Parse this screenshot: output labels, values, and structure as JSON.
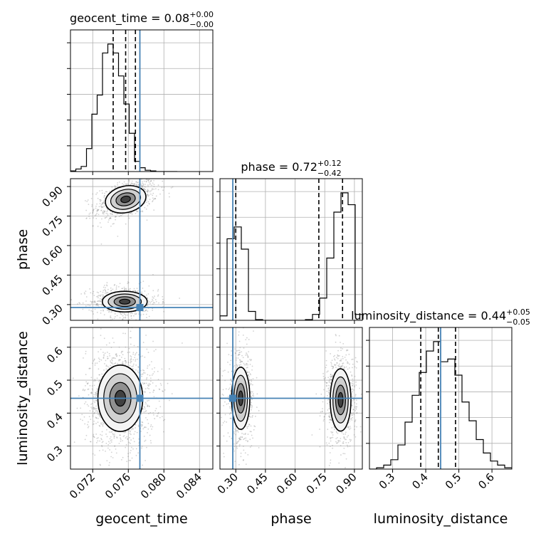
{
  "chart_data": {
    "type": "corner",
    "parameters": [
      {
        "name": "geocent_time",
        "range": [
          0.0695,
          0.0855
        ],
        "ticks": [
          0.072,
          0.076,
          0.08,
          0.084
        ],
        "tick_labels": [
          "0.072",
          "0.076",
          "0.080",
          "0.084"
        ],
        "truth": 0.0773,
        "quantiles": [
          0.0743,
          0.0757,
          0.0768
        ],
        "title_main": "geocent_time = 0.08",
        "title_plus": "+0.00",
        "title_minus": "−0.00",
        "hist_bins": [
          0.0695,
          0.0701,
          0.0707,
          0.0713,
          0.0719,
          0.0725,
          0.0731,
          0.0737,
          0.0743,
          0.0749,
          0.0755,
          0.0761,
          0.0767,
          0.0773,
          0.0779,
          0.0785,
          0.0791,
          0.0797,
          0.0803,
          0.0809,
          0.0815
        ],
        "hist_values": [
          0.005,
          0.02,
          0.04,
          0.18,
          0.45,
          0.6,
          0.93,
          1.0,
          0.93,
          0.75,
          0.53,
          0.3,
          0.08,
          0.03,
          0.01,
          0.005,
          0,
          0,
          0,
          0
        ]
      },
      {
        "name": "phase",
        "range": [
          0.22,
          0.94
        ],
        "ticks": [
          0.3,
          0.45,
          0.6,
          0.75,
          0.9
        ],
        "tick_labels": [
          "0.30",
          "0.45",
          "0.60",
          "0.75",
          "0.90"
        ],
        "truth": 0.285,
        "quantiles": [
          0.3,
          0.72,
          0.84
        ],
        "title_main": "phase = 0.72",
        "title_plus": "+0.12",
        "title_minus": "−0.42",
        "hist_bins": [
          0.22,
          0.256,
          0.292,
          0.328,
          0.364,
          0.4,
          0.436,
          0.472,
          0.508,
          0.544,
          0.58,
          0.616,
          0.652,
          0.688,
          0.724,
          0.76,
          0.796,
          0.832,
          0.868,
          0.904,
          0.94
        ],
        "hist_values": [
          0.03,
          0.55,
          0.63,
          0.48,
          0.06,
          0.005,
          0,
          0,
          0,
          0,
          0,
          0,
          0.005,
          0.04,
          0.15,
          0.42,
          0.73,
          0.86,
          0.78,
          0.04
        ]
      },
      {
        "name": "luminosity_distance",
        "range": [
          0.23,
          0.66
        ],
        "ticks": [
          0.3,
          0.4,
          0.5,
          0.6
        ],
        "tick_labels": [
          "0.3",
          "0.4",
          "0.5",
          "0.6"
        ],
        "truth": 0.445,
        "quantiles": [
          0.385,
          0.438,
          0.49
        ],
        "title_main": "luminosity_distance = 0.44",
        "title_plus": "+0.05",
        "title_minus": "−0.05",
        "hist_bins": [
          0.23,
          0.2515,
          0.273,
          0.2945,
          0.316,
          0.3375,
          0.359,
          0.3805,
          0.402,
          0.4235,
          0.445,
          0.4665,
          0.488,
          0.5095,
          0.531,
          0.5525,
          0.574,
          0.5955,
          0.617,
          0.6385,
          0.66
        ],
        "hist_values": [
          0,
          0.01,
          0.03,
          0.07,
          0.18,
          0.35,
          0.55,
          0.72,
          0.88,
          0.95,
          0.8,
          0.82,
          0.7,
          0.5,
          0.36,
          0.22,
          0.12,
          0.06,
          0.03,
          0.01
        ]
      }
    ],
    "pairs": [
      {
        "x": "geocent_time",
        "y": "phase",
        "modes": [
          {
            "cx": 0.0757,
            "cy": 0.835,
            "sx": 0.0011,
            "sy": 0.032,
            "corr": 0.45,
            "weight": 0.55
          },
          {
            "cx": 0.0756,
            "cy": 0.315,
            "sx": 0.0012,
            "sy": 0.025,
            "corr": 0.0,
            "weight": 0.45
          }
        ]
      },
      {
        "x": "geocent_time",
        "y": "luminosity_distance",
        "modes": [
          {
            "cx": 0.0751,
            "cy": 0.445,
            "sx": 0.0012,
            "sy": 0.048,
            "corr": 0.0,
            "weight": 1.0
          }
        ]
      },
      {
        "x": "phase",
        "y": "luminosity_distance",
        "modes": [
          {
            "cx": 0.325,
            "cy": 0.445,
            "sx": 0.022,
            "sy": 0.045,
            "corr": 0.0,
            "weight": 0.45
          },
          {
            "cx": 0.83,
            "cy": 0.44,
            "sx": 0.025,
            "sy": 0.045,
            "corr": 0.0,
            "weight": 0.55
          }
        ]
      }
    ],
    "truth_color": "#4682b4",
    "grid": true
  }
}
